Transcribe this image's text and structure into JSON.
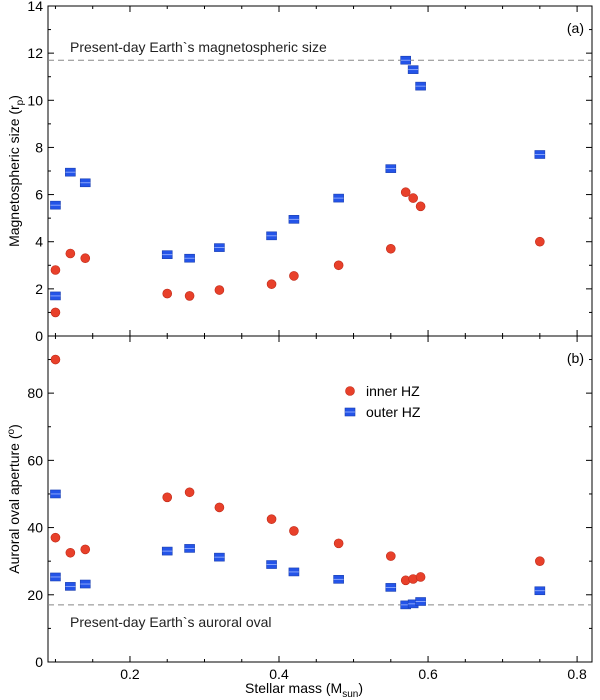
{
  "chart_data": [
    {
      "type": "scatter",
      "panel_label": "(a)",
      "title": "",
      "xlabel": "",
      "ylabel": {
        "main": "Magnetospheric size (r",
        "sub": "p",
        "close": ")"
      },
      "xlim": [
        0.09,
        0.82
      ],
      "ylim": [
        0,
        14
      ],
      "xticks": [
        0.2,
        0.4,
        0.6,
        0.8
      ],
      "yticks": [
        0,
        2,
        4,
        6,
        8,
        10,
        12,
        14
      ],
      "show_x_tick_labels": false,
      "reference_line": {
        "y": 11.7,
        "label": "Present-day Earth`s magnetospheric size",
        "label_position": "above-left"
      },
      "series": [
        {
          "name": "inner HZ",
          "marker": "circle",
          "color": "#e8402a",
          "x": [
            0.1,
            0.1,
            0.12,
            0.14,
            0.25,
            0.28,
            0.32,
            0.39,
            0.42,
            0.48,
            0.55,
            0.57,
            0.58,
            0.59,
            0.75
          ],
          "y": [
            2.8,
            1.0,
            3.5,
            3.3,
            1.8,
            1.7,
            1.95,
            2.2,
            2.55,
            3.0,
            3.7,
            6.1,
            5.85,
            5.5,
            4.0
          ]
        },
        {
          "name": "outer HZ",
          "marker": "square",
          "color": "#2454e8",
          "x": [
            0.1,
            0.1,
            0.12,
            0.14,
            0.25,
            0.28,
            0.32,
            0.39,
            0.42,
            0.48,
            0.55,
            0.57,
            0.58,
            0.59,
            0.75
          ],
          "y": [
            5.55,
            1.7,
            6.95,
            6.5,
            3.45,
            3.3,
            3.75,
            4.25,
            4.95,
            5.85,
            7.1,
            11.7,
            11.3,
            10.6,
            7.7
          ]
        }
      ]
    },
    {
      "type": "scatter",
      "panel_label": "(b)",
      "title": "",
      "xlabel": {
        "main": "Stellar mass (M",
        "sub": "sun",
        "close": ")"
      },
      "ylabel": {
        "main": "Auroral oval aperture (",
        "sup": "o",
        "close": ")"
      },
      "xlim": [
        0.09,
        0.82
      ],
      "ylim": [
        0,
        97
      ],
      "xticks": [
        0.2,
        0.4,
        0.6,
        0.8
      ],
      "yticks": [
        0,
        20,
        40,
        60,
        80
      ],
      "show_x_tick_labels": true,
      "reference_line": {
        "y": 17,
        "label": "Present-day Earth`s auroral oval",
        "label_position": "below-left"
      },
      "legend": {
        "placement": "top-center",
        "entries": [
          "inner HZ",
          "outer HZ"
        ]
      },
      "series": [
        {
          "name": "inner HZ",
          "marker": "circle",
          "color": "#e8402a",
          "x": [
            0.1,
            0.1,
            0.12,
            0.14,
            0.25,
            0.28,
            0.32,
            0.39,
            0.42,
            0.48,
            0.55,
            0.57,
            0.58,
            0.59,
            0.75
          ],
          "y": [
            90.0,
            37.0,
            32.5,
            33.5,
            49.0,
            50.5,
            46.0,
            42.5,
            39.0,
            35.3,
            31.5,
            24.3,
            24.7,
            25.3,
            30.0
          ]
        },
        {
          "name": "outer HZ",
          "marker": "square",
          "color": "#2454e8",
          "x": [
            0.1,
            0.1,
            0.12,
            0.14,
            0.25,
            0.28,
            0.32,
            0.39,
            0.42,
            0.48,
            0.55,
            0.57,
            0.58,
            0.59,
            0.75
          ],
          "y": [
            50.0,
            25.3,
            22.5,
            23.2,
            33.0,
            33.8,
            31.2,
            29.0,
            26.8,
            24.6,
            22.2,
            17.0,
            17.3,
            18.0,
            21.2
          ]
        }
      ]
    }
  ]
}
